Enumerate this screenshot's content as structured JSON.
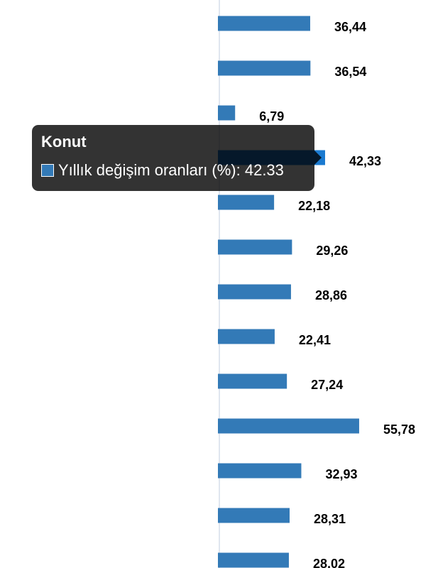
{
  "chart_data": {
    "type": "bar",
    "orientation": "horizontal",
    "series": [
      {
        "name": "Yıllık değişim oranları (%)",
        "values": [
          36.44,
          36.54,
          6.79,
          42.33,
          22.18,
          29.26,
          28.86,
          22.41,
          27.24,
          55.78,
          32.93,
          28.31,
          28.02
        ]
      }
    ],
    "data_labels": [
      "36,44",
      "36,54",
      "6,79",
      "42,33",
      "22,18",
      "29,26",
      "28,86",
      "22,41",
      "27,24",
      "55,78",
      "32,93",
      "28,31",
      "28,02"
    ],
    "highlighted_index": 3,
    "grid": false,
    "colors": {
      "bar": "#337ab7",
      "bar_hover": "#1a7ad0",
      "axis": "#e0e6ef"
    }
  },
  "tooltip": {
    "title": "Konut",
    "series_label": "Yıllık değişim oranları (%): 42.33"
  }
}
